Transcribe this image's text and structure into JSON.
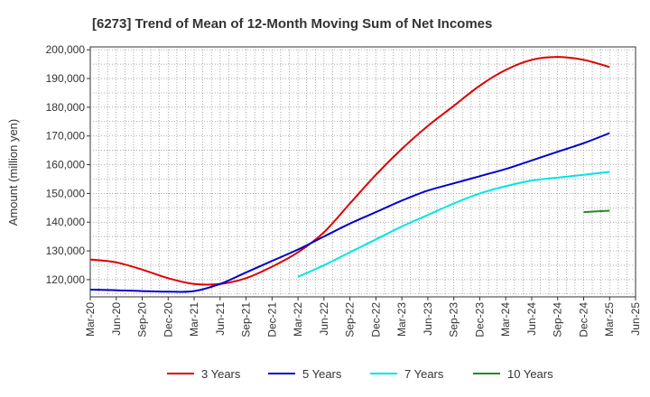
{
  "chart_data": {
    "type": "line",
    "title": "[6273]  Trend of Mean of 12-Month Moving Sum of Net Incomes",
    "ylabel": "Amount (million yen)",
    "xlabel": "",
    "ylim": [
      114000,
      201000
    ],
    "yticks": [
      120000,
      130000,
      140000,
      150000,
      160000,
      170000,
      180000,
      190000,
      200000
    ],
    "ytick_labels": [
      "120,000",
      "130,000",
      "140,000",
      "150,000",
      "160,000",
      "170,000",
      "180,000",
      "190,000",
      "200,000"
    ],
    "x": [
      "Mar-20",
      "Jun-20",
      "Sep-20",
      "Dec-20",
      "Mar-21",
      "Jun-21",
      "Sep-21",
      "Dec-21",
      "Mar-22",
      "Jun-22",
      "Sep-22",
      "Dec-22",
      "Mar-23",
      "Jun-23",
      "Sep-23",
      "Dec-23",
      "Mar-24",
      "Jun-24",
      "Sep-24",
      "Dec-24",
      "Mar-25",
      "Jun-25"
    ],
    "grid": true,
    "legend_position": "bottom",
    "series": [
      {
        "name": "3 Years",
        "color": "#dd0000",
        "values": [
          127000,
          126000,
          123500,
          120500,
          118500,
          118500,
          120500,
          124500,
          129500,
          136500,
          146500,
          156500,
          165500,
          173500,
          180500,
          187500,
          193000,
          196500,
          197500,
          196500,
          194000,
          null
        ]
      },
      {
        "name": "5 Years",
        "color": "#0000cc",
        "values": [
          116500,
          116300,
          116000,
          115800,
          116000,
          118500,
          122500,
          126500,
          130500,
          135000,
          139500,
          143500,
          147500,
          151000,
          153500,
          156000,
          158500,
          161500,
          164500,
          167500,
          171000,
          null
        ]
      },
      {
        "name": "7 Years",
        "color": "#00e5e5",
        "values": [
          null,
          null,
          null,
          null,
          null,
          null,
          null,
          null,
          121000,
          125000,
          129500,
          134000,
          138500,
          142500,
          146500,
          150000,
          152500,
          154500,
          155500,
          156500,
          157500,
          null
        ]
      },
      {
        "name": "10 Years",
        "color": "#228b22",
        "values": [
          null,
          null,
          null,
          null,
          null,
          null,
          null,
          null,
          null,
          null,
          null,
          null,
          null,
          null,
          null,
          null,
          null,
          null,
          null,
          143500,
          144000,
          null
        ]
      }
    ]
  }
}
